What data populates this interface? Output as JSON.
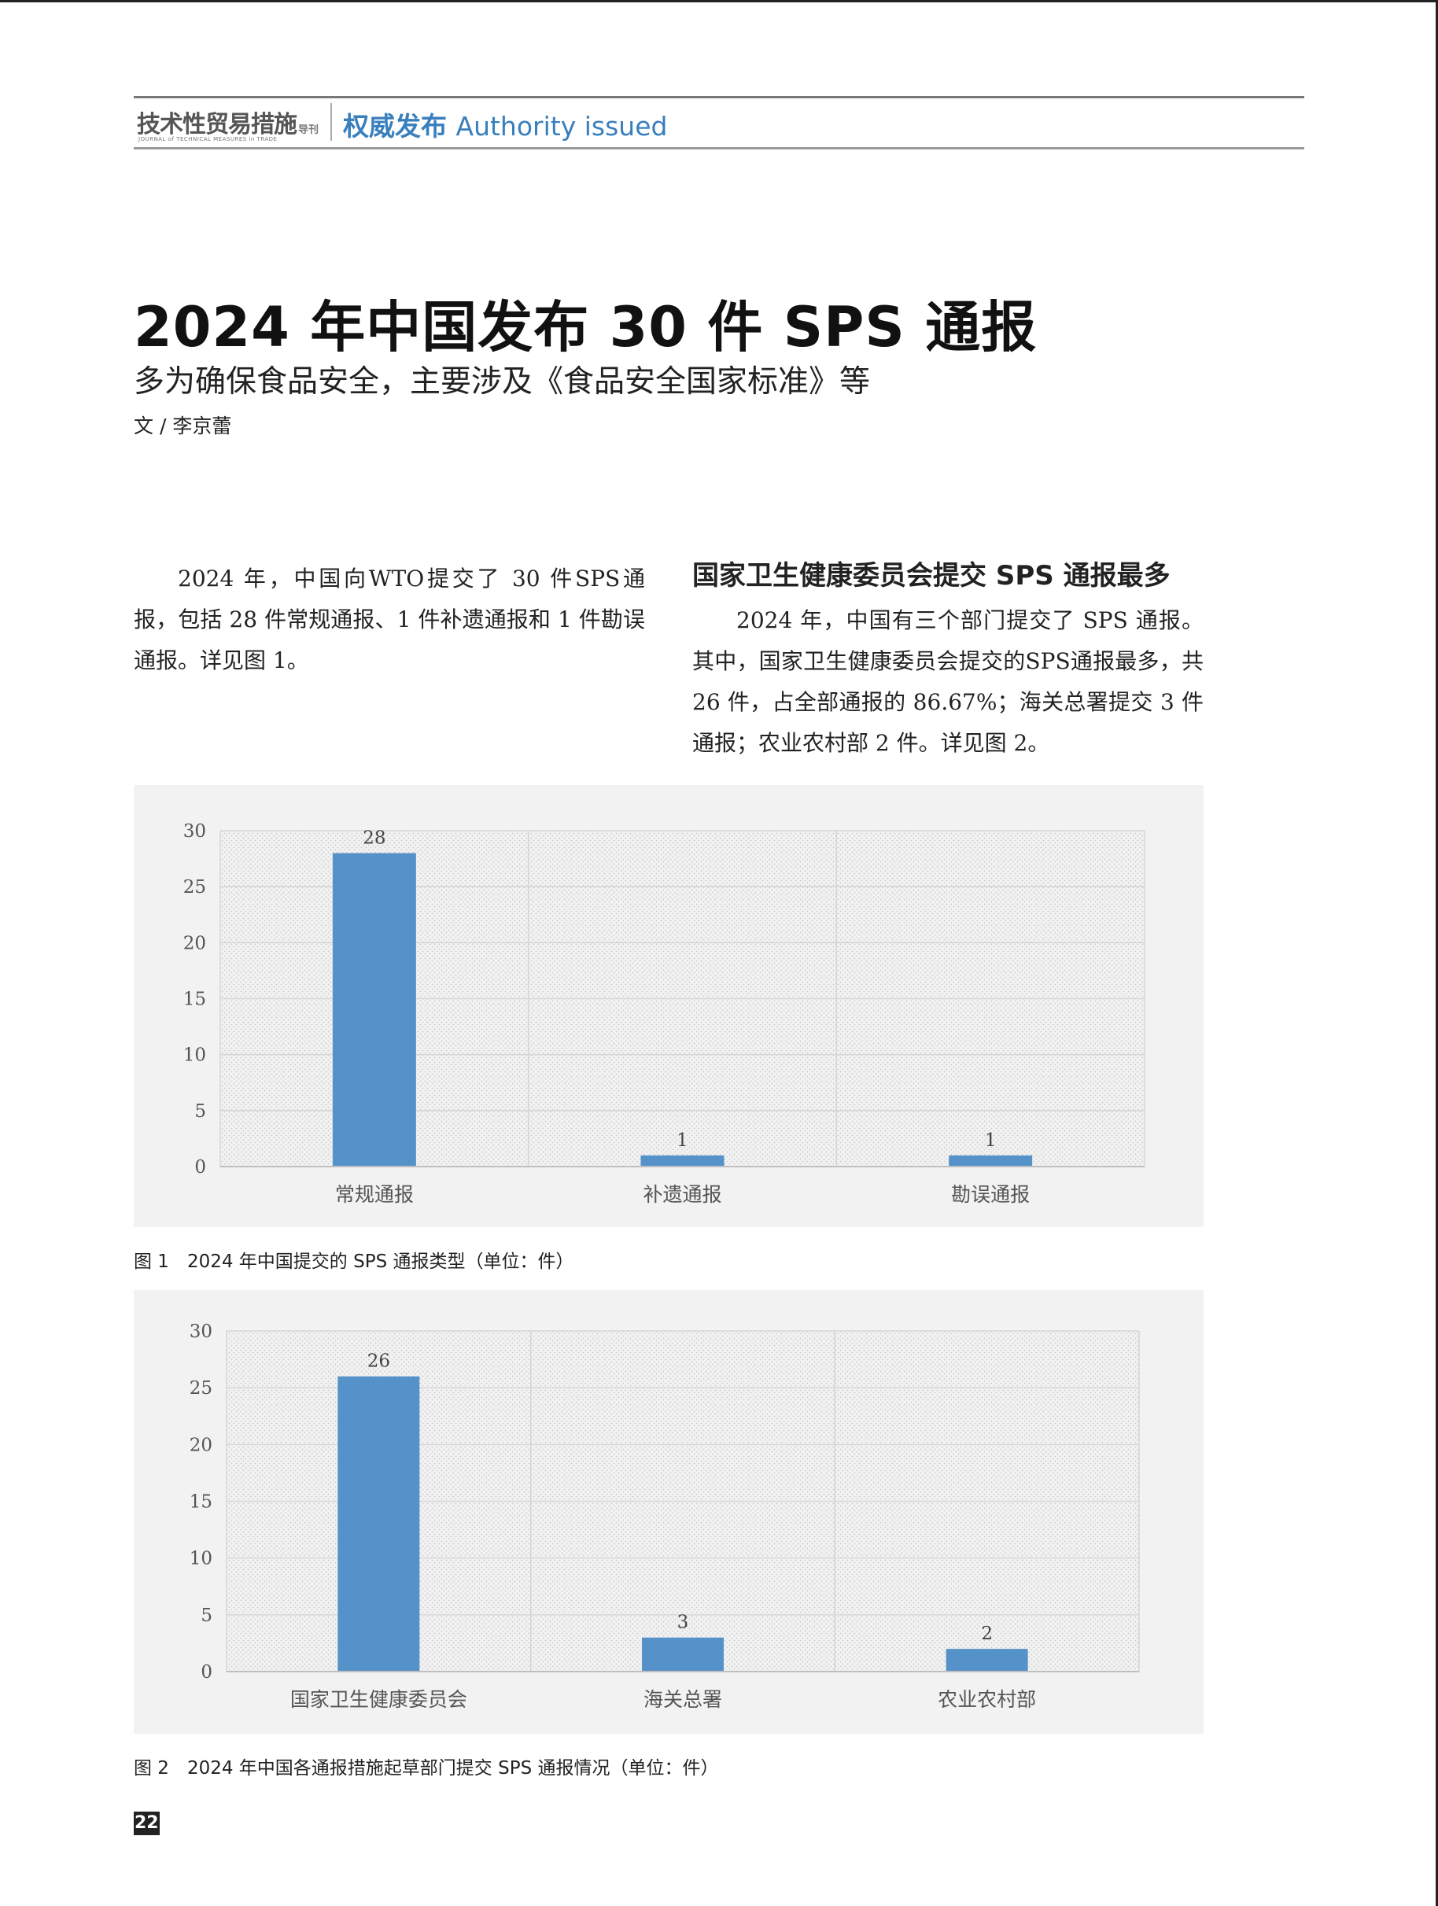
{
  "header": {
    "journal_name": "技术性贸易措施",
    "journal_tag": "导刊",
    "journal_en": "JOURNAL of TECHNICAL MEASURES in TRADE",
    "section_cn": "权威发布",
    "section_en": "Authority issued"
  },
  "article": {
    "title": "2024 年中国发布 30 件 SPS 通报",
    "subtitle": "多为确保食品安全，主要涉及《食品安全国家标准》等",
    "author": "文 / 李京蕾",
    "col1_para": "2024 年，中国向WTO提交了 30 件SPS通报，包括 28 件常规通报、1 件补遗通报和 1 件勘误通报。详见图 1。",
    "col2_heading": "国家卫生健康委员会提交 SPS 通报最多",
    "col2_para": "2024 年，中国有三个部门提交了 SPS 通报。其中，国家卫生健康委员会提交的SPS通报最多，共 26 件，占全部通报的 86.67%；海关总署提交 3 件通报；农业农村部 2 件。详见图 2。"
  },
  "chart_data": [
    {
      "type": "bar",
      "title": "",
      "categories": [
        "常规通报",
        "补遗通报",
        "勘误通报"
      ],
      "values": [
        28,
        1,
        1
      ],
      "data_labels": [
        "28",
        "1",
        "1"
      ],
      "ylim": [
        0,
        30
      ],
      "yticks": [
        "0",
        "5",
        "10",
        "15",
        "20",
        "25",
        "30"
      ],
      "bar_color": "#5592c9",
      "grid": true,
      "caption": "图 1　2024 年中国提交的 SPS 通报类型（单位：件）"
    },
    {
      "type": "bar",
      "title": "",
      "categories": [
        "国家卫生健康委员会",
        "海关总署",
        "农业农村部"
      ],
      "values": [
        26,
        3,
        2
      ],
      "data_labels": [
        "26",
        "3",
        "2"
      ],
      "ylim": [
        0,
        30
      ],
      "yticks": [
        "0",
        "5",
        "10",
        "15",
        "20",
        "25",
        "30"
      ],
      "bar_color": "#5592c9",
      "grid": true,
      "caption": "图 2　2024 年中国各通报措施起草部门提交 SPS 通报情况（单位：件）"
    }
  ],
  "page_number": "22"
}
